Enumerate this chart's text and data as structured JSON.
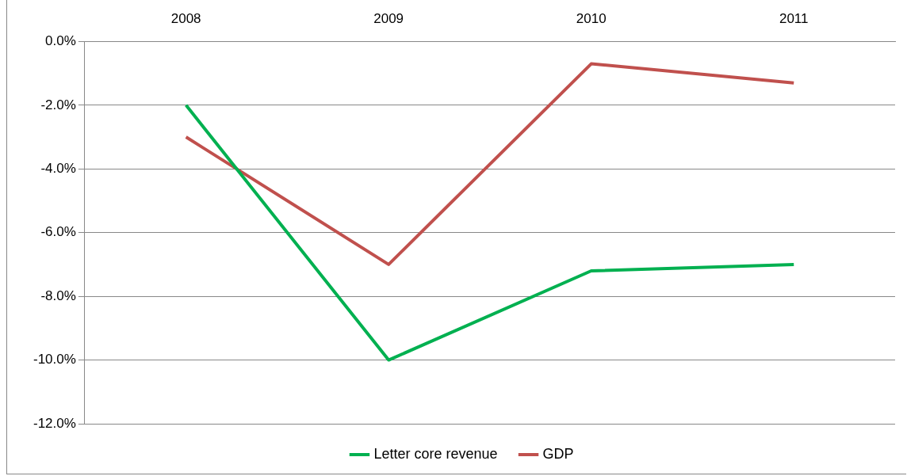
{
  "chart_data": {
    "type": "line",
    "categories": [
      "2008",
      "2009",
      "2010",
      "2011"
    ],
    "series": [
      {
        "name": "Letter core revenue",
        "color": "#00b050",
        "values": [
          -2.0,
          -10.0,
          -7.2,
          -7.0
        ]
      },
      {
        "name": "GDP",
        "color": "#c0504d",
        "values": [
          -3.0,
          -7.0,
          -0.7,
          -1.3
        ]
      }
    ],
    "ylim": [
      -12,
      0
    ],
    "yticks": [
      {
        "value": -12,
        "label": "-12.0%"
      },
      {
        "value": -10,
        "label": "-10.0%"
      },
      {
        "value": -8,
        "label": "-8.0%"
      },
      {
        "value": -6,
        "label": "-6.0%"
      },
      {
        "value": -4,
        "label": "-4.0%"
      },
      {
        "value": -2,
        "label": "-2.0%"
      },
      {
        "value": 0,
        "label": "0.0%"
      }
    ],
    "grid": "y",
    "legend": "bottom",
    "marker": "none",
    "line_style": "solid"
  }
}
